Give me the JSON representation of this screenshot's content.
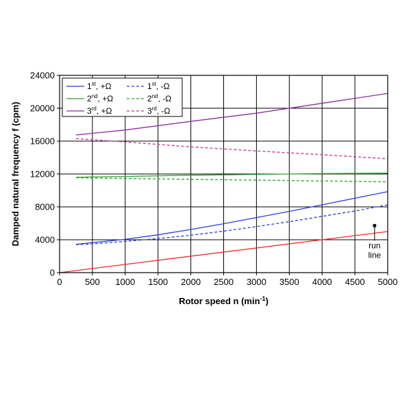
{
  "chart_data": {
    "type": "line",
    "title": "",
    "xlabel": {
      "main": "Rotor speed n (min",
      "sup": "-1",
      "end": ")"
    },
    "ylabel": "Damped natural frequency f (cpm)",
    "xlim": [
      0,
      5000
    ],
    "ylim": [
      0,
      24000
    ],
    "x_ticks": [
      "0",
      "500",
      "1000",
      "1500",
      "2000",
      "2500",
      "3000",
      "3500",
      "4000",
      "4500",
      "5000"
    ],
    "y_ticks": [
      "0",
      "4000",
      "8000",
      "12000",
      "16000",
      "20000",
      "24000"
    ],
    "grid": true,
    "legend_position": "top-left",
    "series": [
      {
        "id": "s1p",
        "name": {
          "base": "1",
          "sup": "st",
          "rest": ", +Ω"
        },
        "color": "#2a3fd6",
        "dashed": false,
        "x": [
          250,
          500,
          1000,
          1500,
          2000,
          2500,
          3000,
          3500,
          4000,
          4500,
          5000
        ],
        "y": [
          3450,
          3650,
          4050,
          4600,
          5250,
          5950,
          6700,
          7450,
          8250,
          9050,
          9850
        ]
      },
      {
        "id": "s1m",
        "name": {
          "base": "1",
          "sup": "st",
          "rest": ", -Ω"
        },
        "color": "#2a3fd6",
        "dashed": true,
        "x": [
          250,
          500,
          1000,
          1500,
          2000,
          2500,
          3000,
          3500,
          4000,
          4500,
          5000
        ],
        "y": [
          3400,
          3500,
          3800,
          4150,
          4550,
          5050,
          5600,
          6200,
          6850,
          7500,
          8250
        ]
      },
      {
        "id": "s2p",
        "name": {
          "base": "2",
          "sup": "nd",
          "rest": ", +Ω"
        },
        "color": "#2ca02c",
        "dashed": false,
        "x": [
          250,
          1000,
          2000,
          3000,
          4000,
          5000
        ],
        "y": [
          11600,
          11700,
          11850,
          11950,
          12050,
          12100
        ]
      },
      {
        "id": "s2m",
        "name": {
          "base": "2",
          "sup": "nd",
          "rest": ", -Ω"
        },
        "color": "#2ca02c",
        "dashed": true,
        "x": [
          250,
          1000,
          2000,
          3000,
          4000,
          5000
        ],
        "y": [
          11550,
          11450,
          11350,
          11250,
          11150,
          11050
        ]
      },
      {
        "id": "s3p",
        "name": {
          "base": "3",
          "sup": "rd",
          "rest": ", +Ω"
        },
        "color": "#8e2c9e",
        "dashed": false,
        "x": [
          250,
          1000,
          2000,
          3000,
          4000,
          5000
        ],
        "y": [
          16750,
          17350,
          18400,
          19400,
          20600,
          21800
        ]
      },
      {
        "id": "s3m",
        "name": {
          "base": "3",
          "sup": "rd",
          "rest": ", -Ω"
        },
        "color": "#c0309a",
        "dashed": true,
        "x": [
          250,
          1000,
          2000,
          3000,
          4000,
          5000
        ],
        "y": [
          16300,
          15900,
          15300,
          14800,
          14350,
          13850
        ]
      },
      {
        "id": "run",
        "name": null,
        "color": "#ee2b2b",
        "dashed": false,
        "x": [
          0,
          5000
        ],
        "y": [
          0,
          5000
        ]
      }
    ],
    "annotations": [
      {
        "lines": [
          "run",
          "line"
        ],
        "point": [
          4800,
          4800
        ]
      }
    ]
  }
}
